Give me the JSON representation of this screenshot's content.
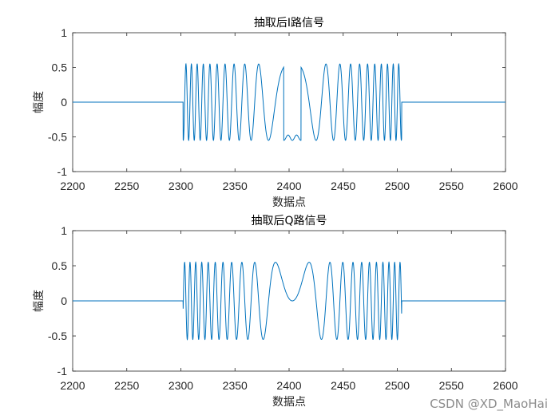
{
  "chart_data": [
    {
      "type": "line",
      "title": "抽取后I路信号",
      "xlabel": "数据点",
      "ylabel": "幅度",
      "xlim": [
        2200,
        2600
      ],
      "ylim": [
        -1,
        1
      ],
      "xticks": [
        2200,
        2250,
        2300,
        2350,
        2400,
        2450,
        2500,
        2550,
        2600
      ],
      "yticks": [
        -1,
        -0.5,
        0,
        0.5,
        1
      ],
      "grid": false,
      "series": [
        {
          "color": "#0072bd",
          "signal": {
            "start": 2302,
            "end": 2504,
            "center": 2403,
            "amplitude": 0.55,
            "phase": "cos",
            "envelope": "flat",
            "zero_elsewhere": true
          }
        }
      ]
    },
    {
      "type": "line",
      "title": "抽取后Q路信号",
      "xlabel": "数据点",
      "ylabel": "幅度",
      "xlim": [
        2200,
        2600
      ],
      "ylim": [
        -1,
        1
      ],
      "xticks": [
        2200,
        2250,
        2300,
        2350,
        2400,
        2450,
        2500,
        2550,
        2600
      ],
      "yticks": [
        -1,
        -0.5,
        0,
        0.5,
        1
      ],
      "grid": false,
      "series": [
        {
          "color": "#0072bd",
          "signal": {
            "start": 2302,
            "end": 2504,
            "center": 2403,
            "amplitude": 0.55,
            "phase": "sin",
            "envelope": "flat",
            "zero_elsewhere": true
          }
        }
      ]
    }
  ],
  "watermark": "CSDN @XD_MaoHai"
}
